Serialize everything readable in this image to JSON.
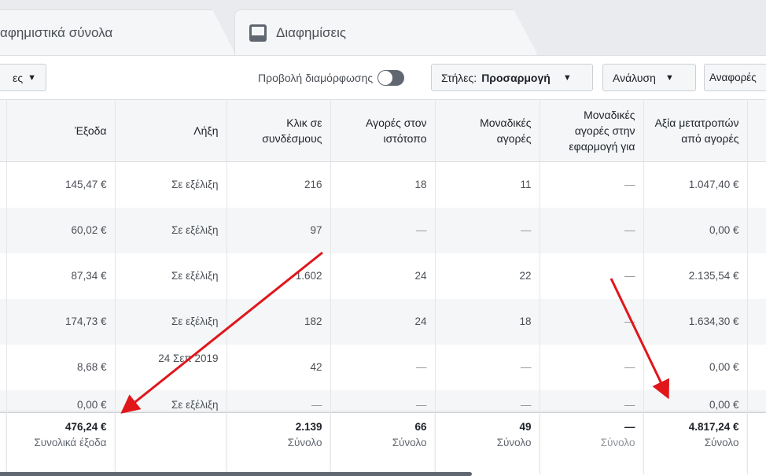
{
  "tabs": [
    {
      "label": "αφημιστικά σύνολα"
    },
    {
      "label": "Διαφημίσεις",
      "icon": "ad-icon"
    }
  ],
  "toolbar": {
    "left_button": "ες",
    "view_setup": "Προβολή διαμόρφωσης",
    "columns_prefix": "Στήλες:",
    "columns_value": "Προσαρμογή",
    "breakdown": "Ανάλυση",
    "reports": "Αναφορές"
  },
  "table": {
    "headers": [
      "Έξοδα",
      "Λήξη",
      "Κλικ σε συνδέσμους",
      "Αγορές στον ιστότοπο",
      "Μοναδικές αγορές",
      "Μοναδικές αγορές στην εφαρμογή για",
      "Αξία μετατροπών από αγορές"
    ],
    "rows": [
      [
        "145,47 €",
        "Σε εξέλιξη",
        "216",
        "18",
        "11",
        "—",
        "1.047,40 €"
      ],
      [
        "60,02 €",
        "Σε εξέλιξη",
        "97",
        "—",
        "—",
        "—",
        "0,00 €"
      ],
      [
        "87,34 €",
        "Σε εξέλιξη",
        "1.602",
        "24",
        "22",
        "—",
        "2.135,54 €"
      ],
      [
        "174,73 €",
        "Σε εξέλιξη",
        "182",
        "24",
        "18",
        "—",
        "1.634,30 €"
      ],
      [
        "8,68 €",
        "24 Σεπ 2019",
        "42",
        "—",
        "—",
        "—",
        "0,00 €"
      ],
      [
        "0,00 €",
        "Σε εξέλιξη",
        "—",
        "—",
        "—",
        "—",
        "0,00 €"
      ]
    ],
    "footer": [
      {
        "value": "476,24 €",
        "label": "Συνολικά έξοδα"
      },
      {
        "value": "",
        "label": ""
      },
      {
        "value": "2.139",
        "label": "Σύνολο"
      },
      {
        "value": "66",
        "label": "Σύνολο"
      },
      {
        "value": "49",
        "label": "Σύνολο"
      },
      {
        "value": "—",
        "label": "Σύνολο"
      },
      {
        "value": "4.817,24 €",
        "label": "Σύνολο"
      }
    ]
  },
  "colors": {
    "arrow": "#e0161b"
  }
}
